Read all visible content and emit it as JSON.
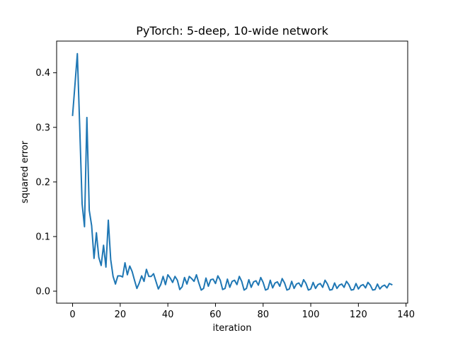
{
  "chart_data": {
    "type": "line",
    "title": "PyTorch: 5-deep, 10-wide network",
    "xlabel": "iteration",
    "ylabel": "squared error",
    "xlim": [
      -6.7,
      140.7
    ],
    "ylim": [
      -0.022,
      0.458
    ],
    "xticks": [
      0,
      20,
      40,
      60,
      80,
      100,
      120,
      140
    ],
    "yticks": [
      0.0,
      0.1,
      0.2,
      0.3,
      0.4
    ],
    "xtick_labels": [
      "0",
      "20",
      "40",
      "60",
      "80",
      "100",
      "120",
      "140"
    ],
    "ytick_labels": [
      "0.0",
      "0.1",
      "0.2",
      "0.3",
      "0.4"
    ],
    "grid": false,
    "series": [
      {
        "color": "#1f77b4",
        "x": [
          0,
          1,
          2,
          3,
          4,
          5,
          6,
          7,
          8,
          9,
          10,
          11,
          12,
          13,
          14,
          15,
          16,
          17,
          18,
          19,
          20,
          21,
          22,
          23,
          24,
          25,
          26,
          27,
          28,
          29,
          30,
          31,
          32,
          33,
          34,
          35,
          36,
          37,
          38,
          39,
          40,
          41,
          42,
          43,
          44,
          45,
          46,
          47,
          48,
          49,
          50,
          51,
          52,
          53,
          54,
          55,
          56,
          57,
          58,
          59,
          60,
          61,
          62,
          63,
          64,
          65,
          66,
          67,
          68,
          69,
          70,
          71,
          72,
          73,
          74,
          75,
          76,
          77,
          78,
          79,
          80,
          81,
          82,
          83,
          84,
          85,
          86,
          87,
          88,
          89,
          90,
          91,
          92,
          93,
          94,
          95,
          96,
          97,
          98,
          99,
          100,
          101,
          102,
          103,
          104,
          105,
          106,
          107,
          108,
          109,
          110,
          111,
          112,
          113,
          114,
          115,
          116,
          117,
          118,
          119,
          120,
          121,
          122,
          123,
          124,
          125,
          126,
          127,
          128,
          129,
          130,
          131,
          132,
          133,
          134
        ],
        "values": [
          0.322,
          0.378,
          0.435,
          0.3,
          0.16,
          0.118,
          0.318,
          0.148,
          0.12,
          0.06,
          0.107,
          0.062,
          0.047,
          0.084,
          0.044,
          0.13,
          0.058,
          0.027,
          0.013,
          0.028,
          0.028,
          0.026,
          0.052,
          0.03,
          0.046,
          0.036,
          0.02,
          0.005,
          0.015,
          0.028,
          0.018,
          0.04,
          0.027,
          0.027,
          0.032,
          0.018,
          0.004,
          0.012,
          0.027,
          0.012,
          0.03,
          0.024,
          0.016,
          0.027,
          0.02,
          0.003,
          0.008,
          0.025,
          0.013,
          0.027,
          0.023,
          0.018,
          0.03,
          0.015,
          0.002,
          0.005,
          0.024,
          0.009,
          0.021,
          0.022,
          0.014,
          0.028,
          0.02,
          0.003,
          0.005,
          0.022,
          0.007,
          0.018,
          0.02,
          0.012,
          0.027,
          0.018,
          0.002,
          0.005,
          0.021,
          0.007,
          0.017,
          0.019,
          0.011,
          0.025,
          0.016,
          0.002,
          0.004,
          0.02,
          0.006,
          0.015,
          0.017,
          0.009,
          0.023,
          0.015,
          0.002,
          0.004,
          0.018,
          0.005,
          0.013,
          0.015,
          0.008,
          0.021,
          0.014,
          0.002,
          0.004,
          0.016,
          0.005,
          0.012,
          0.014,
          0.007,
          0.02,
          0.013,
          0.002,
          0.003,
          0.015,
          0.005,
          0.011,
          0.013,
          0.007,
          0.018,
          0.012,
          0.002,
          0.003,
          0.014,
          0.004,
          0.01,
          0.012,
          0.006,
          0.016,
          0.011,
          0.002,
          0.003,
          0.013,
          0.004,
          0.009,
          0.011,
          0.006,
          0.014,
          0.012
        ]
      }
    ]
  }
}
